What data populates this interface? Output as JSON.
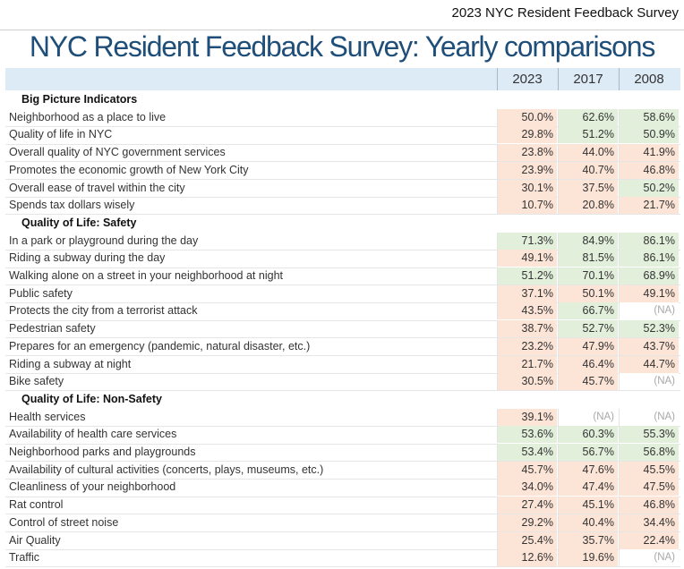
{
  "header_tag": "2023 NYC Resident Feedback Survey",
  "title": "NYC Resident Feedback Survey: Yearly comparisons",
  "columns": [
    "2023",
    "2017",
    "2008"
  ],
  "colors": {
    "green": "#e2efda",
    "orange": "#fce4d6",
    "white": "#ffffff",
    "header_band": "#ddebf7",
    "title": "#1f4e79"
  },
  "sections": [
    {
      "title": "Big Picture Indicators",
      "rows": [
        {
          "label": "Neighborhood as a place to live",
          "values": [
            "50.0%",
            "62.6%",
            "58.6%"
          ],
          "colors": [
            "orange",
            "green",
            "green"
          ]
        },
        {
          "label": "Quality of life in NYC",
          "values": [
            "29.8%",
            "51.2%",
            "50.9%"
          ],
          "colors": [
            "orange",
            "green",
            "green"
          ]
        },
        {
          "label": "Overall quality of NYC government services",
          "values": [
            "23.8%",
            "44.0%",
            "41.9%"
          ],
          "colors": [
            "orange",
            "orange",
            "orange"
          ]
        },
        {
          "label": "Promotes the economic growth of New York City",
          "values": [
            "23.9%",
            "40.7%",
            "46.8%"
          ],
          "colors": [
            "orange",
            "orange",
            "orange"
          ]
        },
        {
          "label": "Overall ease of travel within the city",
          "values": [
            "30.1%",
            "37.5%",
            "50.2%"
          ],
          "colors": [
            "orange",
            "orange",
            "green"
          ]
        },
        {
          "label": "Spends tax dollars wisely",
          "values": [
            "10.7%",
            "20.8%",
            "21.7%"
          ],
          "colors": [
            "orange",
            "orange",
            "orange"
          ]
        }
      ]
    },
    {
      "title": "Quality of Life: Safety",
      "rows": [
        {
          "label": "In a park or playground during the day",
          "values": [
            "71.3%",
            "84.9%",
            "86.1%"
          ],
          "colors": [
            "green",
            "green",
            "green"
          ]
        },
        {
          "label": "Riding a subway during the day",
          "values": [
            "49.1%",
            "81.5%",
            "86.1%"
          ],
          "colors": [
            "orange",
            "green",
            "green"
          ]
        },
        {
          "label": "Walking alone on a street in your neighborhood at night",
          "values": [
            "51.2%",
            "70.1%",
            "68.9%"
          ],
          "colors": [
            "green",
            "green",
            "green"
          ]
        },
        {
          "label": "Public safety",
          "values": [
            "37.1%",
            "50.1%",
            "49.1%"
          ],
          "colors": [
            "orange",
            "orange",
            "orange"
          ]
        },
        {
          "label": "Protects the city from a terrorist attack",
          "values": [
            "43.5%",
            "66.7%",
            "(NA)"
          ],
          "colors": [
            "orange",
            "green",
            "white"
          ]
        },
        {
          "label": "Pedestrian safety",
          "values": [
            "38.7%",
            "52.7%",
            "52.3%"
          ],
          "colors": [
            "orange",
            "green",
            "green"
          ]
        },
        {
          "label": "Prepares for an emergency (pandemic, natural disaster, etc.)",
          "values": [
            "23.2%",
            "47.9%",
            "43.7%"
          ],
          "colors": [
            "orange",
            "orange",
            "orange"
          ]
        },
        {
          "label": "Riding a subway at night",
          "values": [
            "21.7%",
            "46.4%",
            "44.7%"
          ],
          "colors": [
            "orange",
            "orange",
            "orange"
          ]
        },
        {
          "label": "Bike safety",
          "values": [
            "30.5%",
            "45.7%",
            "(NA)"
          ],
          "colors": [
            "orange",
            "orange",
            "white"
          ]
        }
      ]
    },
    {
      "title": "Quality of Life: Non-Safety",
      "rows": [
        {
          "label": "Health services",
          "values": [
            "39.1%",
            "(NA)",
            "(NA)"
          ],
          "colors": [
            "orange",
            "white",
            "white"
          ]
        },
        {
          "label": "Availability of health care services",
          "values": [
            "53.6%",
            "60.3%",
            "55.3%"
          ],
          "colors": [
            "green",
            "green",
            "green"
          ]
        },
        {
          "label": "Neighborhood parks and playgrounds",
          "values": [
            "53.4%",
            "56.7%",
            "56.8%"
          ],
          "colors": [
            "green",
            "green",
            "green"
          ]
        },
        {
          "label": "Availability of cultural activities (concerts, plays, museums, etc.)",
          "values": [
            "45.7%",
            "47.6%",
            "45.5%"
          ],
          "colors": [
            "orange",
            "orange",
            "orange"
          ]
        },
        {
          "label": "Cleanliness of your neighborhood",
          "values": [
            "34.0%",
            "47.4%",
            "47.5%"
          ],
          "colors": [
            "orange",
            "orange",
            "orange"
          ]
        },
        {
          "label": "Rat control",
          "values": [
            "27.4%",
            "45.1%",
            "46.8%"
          ],
          "colors": [
            "orange",
            "orange",
            "orange"
          ]
        },
        {
          "label": "Control of street noise",
          "values": [
            "29.2%",
            "40.4%",
            "34.4%"
          ],
          "colors": [
            "orange",
            "orange",
            "orange"
          ]
        },
        {
          "label": "Air Quality",
          "values": [
            "25.4%",
            "35.7%",
            "22.4%"
          ],
          "colors": [
            "orange",
            "orange",
            "orange"
          ]
        },
        {
          "label": "Traffic",
          "values": [
            "12.6%",
            "19.6%",
            "(NA)"
          ],
          "colors": [
            "orange",
            "orange",
            "white"
          ]
        }
      ]
    }
  ]
}
